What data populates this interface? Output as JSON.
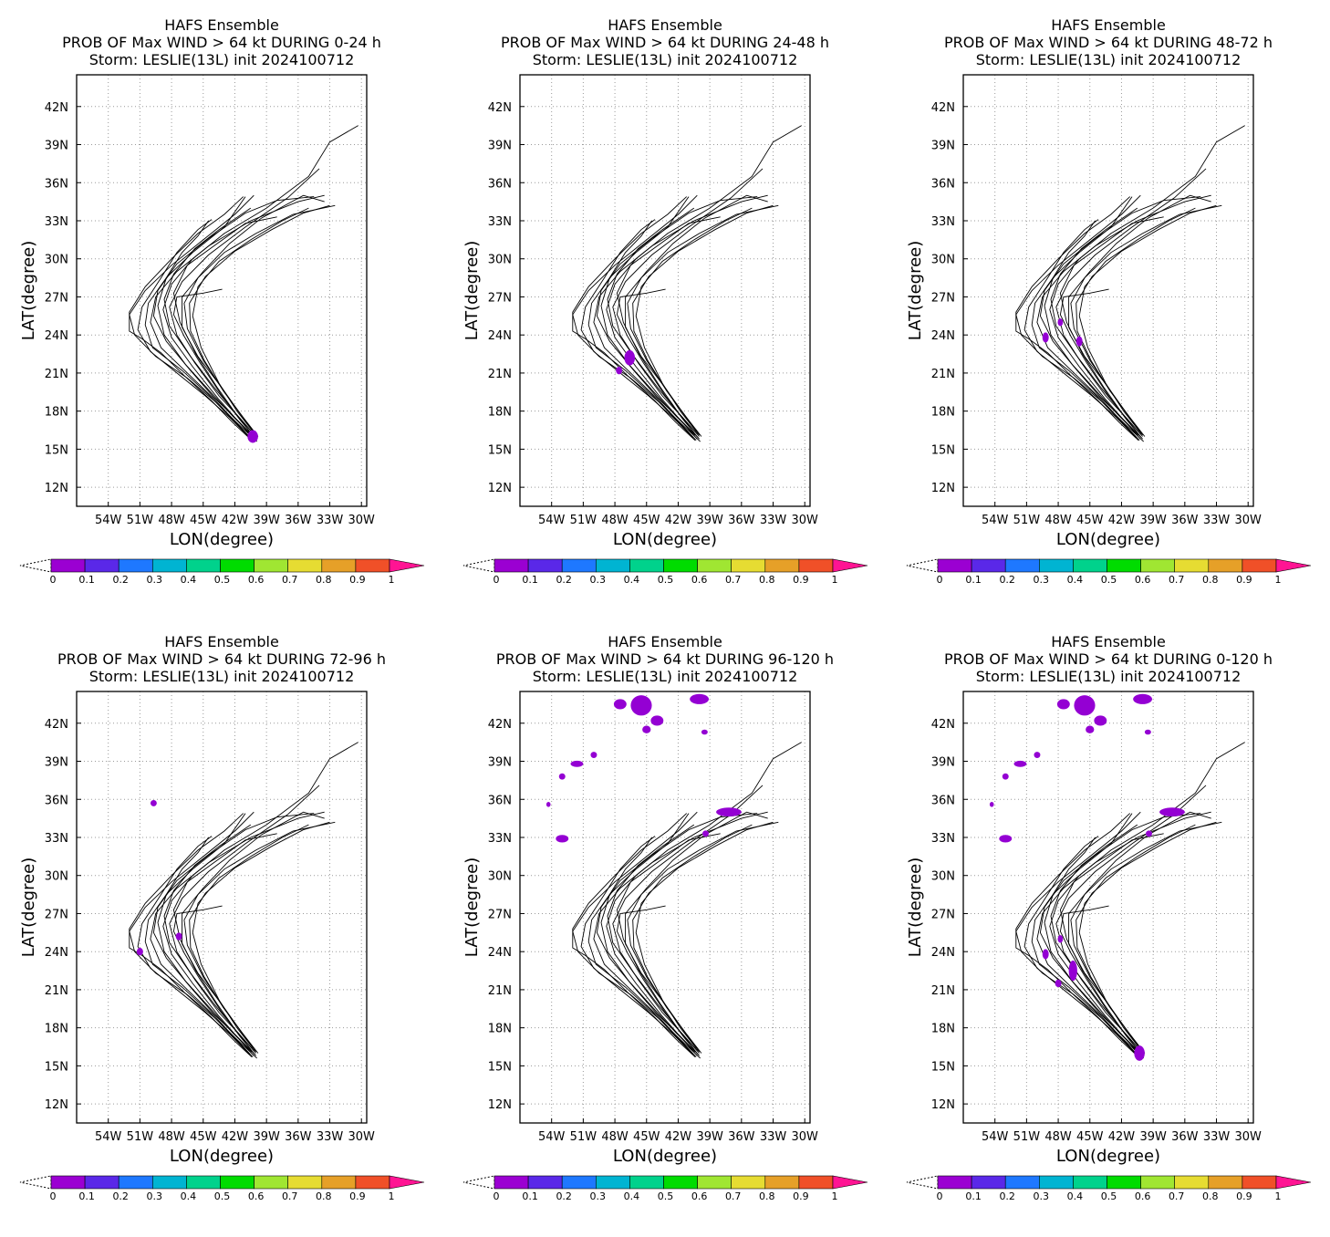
{
  "chart_data": [
    {
      "type": "map",
      "title_line1": "HAFS Ensemble",
      "title_line2": "PROB OF Max WIND > 64 kt DURING  0-24 h",
      "title_line3": "Storm: LESLIE(13L) init 2024100712",
      "xlabel": "LON(degree)",
      "ylabel": "LAT(degree)",
      "prob_areas": [
        {
          "lon": -40.3,
          "lat": 16.0,
          "rlon": 0.5,
          "rlat": 0.5
        }
      ]
    },
    {
      "type": "map",
      "title_line1": "HAFS Ensemble",
      "title_line2": "PROB OF Max WIND > 64 kt DURING 24-48 h",
      "title_line3": "Storm: LESLIE(13L) init 2024100712",
      "xlabel": "LON(degree)",
      "ylabel": "LAT(degree)",
      "prob_areas": [
        {
          "lon": -46.6,
          "lat": 22.2,
          "rlon": 0.5,
          "rlat": 0.6
        },
        {
          "lon": -47.6,
          "lat": 21.2,
          "rlon": 0.3,
          "rlat": 0.3
        }
      ]
    },
    {
      "type": "map",
      "title_line1": "HAFS Ensemble",
      "title_line2": "PROB OF Max WIND > 64 kt DURING 48-72 h",
      "title_line3": "Storm: LESLIE(13L) init 2024100712",
      "xlabel": "LON(degree)",
      "ylabel": "LAT(degree)",
      "prob_areas": [
        {
          "lon": -49.2,
          "lat": 23.8,
          "rlon": 0.3,
          "rlat": 0.4
        },
        {
          "lon": -47.8,
          "lat": 25.0,
          "rlon": 0.25,
          "rlat": 0.3
        },
        {
          "lon": -46.0,
          "lat": 23.5,
          "rlon": 0.3,
          "rlat": 0.4
        }
      ]
    },
    {
      "type": "map",
      "title_line1": "HAFS Ensemble",
      "title_line2": "PROB OF Max WIND > 64 kt DURING 72-96 h",
      "title_line3": "Storm: LESLIE(13L) init 2024100712",
      "xlabel": "LON(degree)",
      "ylabel": "LAT(degree)",
      "prob_areas": [
        {
          "lon": -49.7,
          "lat": 35.7,
          "rlon": 0.3,
          "rlat": 0.25
        },
        {
          "lon": -47.3,
          "lat": 25.2,
          "rlon": 0.3,
          "rlat": 0.3
        },
        {
          "lon": -51.0,
          "lat": 24.0,
          "rlon": 0.3,
          "rlat": 0.3
        }
      ]
    },
    {
      "type": "map",
      "title_line1": "HAFS Ensemble",
      "title_line2": "PROB OF Max WIND > 64 kt DURING 96-120 h",
      "title_line3": "Storm: LESLIE(13L) init 2024100712",
      "xlabel": "LON(degree)",
      "ylabel": "LAT(degree)",
      "prob_areas": [
        {
          "lon": -47.5,
          "lat": 43.5,
          "rlon": 0.6,
          "rlat": 0.4
        },
        {
          "lon": -45.5,
          "lat": 43.4,
          "rlon": 1.0,
          "rlat": 0.8
        },
        {
          "lon": -44.0,
          "lat": 42.2,
          "rlon": 0.6,
          "rlat": 0.4
        },
        {
          "lon": -45.0,
          "lat": 41.5,
          "rlon": 0.4,
          "rlat": 0.3
        },
        {
          "lon": -40.0,
          "lat": 43.9,
          "rlon": 0.9,
          "rlat": 0.4
        },
        {
          "lon": -39.5,
          "lat": 41.3,
          "rlon": 0.3,
          "rlat": 0.2
        },
        {
          "lon": -51.6,
          "lat": 38.8,
          "rlon": 0.6,
          "rlat": 0.25
        },
        {
          "lon": -50.0,
          "lat": 39.5,
          "rlon": 0.3,
          "rlat": 0.25
        },
        {
          "lon": -53.0,
          "lat": 37.8,
          "rlon": 0.3,
          "rlat": 0.25
        },
        {
          "lon": -54.3,
          "lat": 35.6,
          "rlon": 0.2,
          "rlat": 0.2
        },
        {
          "lon": -53.0,
          "lat": 32.9,
          "rlon": 0.6,
          "rlat": 0.3
        },
        {
          "lon": -37.2,
          "lat": 35.0,
          "rlon": 1.2,
          "rlat": 0.35
        },
        {
          "lon": -39.4,
          "lat": 33.3,
          "rlon": 0.3,
          "rlat": 0.25
        }
      ]
    },
    {
      "type": "map",
      "title_line1": "HAFS Ensemble",
      "title_line2": "PROB OF Max WIND > 64 kt DURING 0-120 h",
      "title_line3": "Storm: LESLIE(13L) init 2024100712",
      "xlabel": "LON(degree)",
      "ylabel": "LAT(degree)",
      "prob_areas": [
        {
          "lon": -47.5,
          "lat": 43.5,
          "rlon": 0.6,
          "rlat": 0.4
        },
        {
          "lon": -45.5,
          "lat": 43.4,
          "rlon": 1.0,
          "rlat": 0.8
        },
        {
          "lon": -44.0,
          "lat": 42.2,
          "rlon": 0.6,
          "rlat": 0.4
        },
        {
          "lon": -45.0,
          "lat": 41.5,
          "rlon": 0.4,
          "rlat": 0.3
        },
        {
          "lon": -40.0,
          "lat": 43.9,
          "rlon": 0.9,
          "rlat": 0.4
        },
        {
          "lon": -39.5,
          "lat": 41.3,
          "rlon": 0.3,
          "rlat": 0.2
        },
        {
          "lon": -51.6,
          "lat": 38.8,
          "rlon": 0.6,
          "rlat": 0.25
        },
        {
          "lon": -50.0,
          "lat": 39.5,
          "rlon": 0.3,
          "rlat": 0.25
        },
        {
          "lon": -53.0,
          "lat": 37.8,
          "rlon": 0.3,
          "rlat": 0.25
        },
        {
          "lon": -54.3,
          "lat": 35.6,
          "rlon": 0.2,
          "rlat": 0.2
        },
        {
          "lon": -53.0,
          "lat": 32.9,
          "rlon": 0.6,
          "rlat": 0.3
        },
        {
          "lon": -37.2,
          "lat": 35.0,
          "rlon": 1.2,
          "rlat": 0.35
        },
        {
          "lon": -39.4,
          "lat": 33.3,
          "rlon": 0.3,
          "rlat": 0.25
        },
        {
          "lon": -40.3,
          "lat": 16.0,
          "rlon": 0.5,
          "rlat": 0.6
        },
        {
          "lon": -46.6,
          "lat": 22.5,
          "rlon": 0.4,
          "rlat": 0.8
        },
        {
          "lon": -49.2,
          "lat": 23.8,
          "rlon": 0.3,
          "rlat": 0.4
        },
        {
          "lon": -47.8,
          "lat": 25.0,
          "rlon": 0.25,
          "rlat": 0.3
        },
        {
          "lon": -48.0,
          "lat": 21.5,
          "rlon": 0.3,
          "rlat": 0.3
        }
      ]
    }
  ],
  "shared": {
    "xlim": [
      -57,
      -29.5
    ],
    "ylim": [
      10.5,
      44.5
    ],
    "xticks": [
      -54,
      -51,
      -48,
      -45,
      -42,
      -39,
      -36,
      -33,
      -30
    ],
    "xtick_labels": [
      "54W",
      "51W",
      "48W",
      "45W",
      "42W",
      "39W",
      "36W",
      "33W",
      "30W"
    ],
    "yticks": [
      12,
      15,
      18,
      21,
      24,
      27,
      30,
      33,
      36,
      39,
      42
    ],
    "ytick_labels": [
      "12N",
      "15N",
      "18N",
      "21N",
      "24N",
      "27N",
      "30N",
      "33N",
      "36N",
      "39N",
      "42N"
    ],
    "grid": true,
    "prob_color": "#9400d3",
    "colorbar": {
      "colors": [
        "#9b00d2",
        "#5a28e8",
        "#1e78ff",
        "#00b4d2",
        "#00d28c",
        "#00dc00",
        "#a0e632",
        "#e6dc32",
        "#e6a028",
        "#f05028",
        "#ff1493"
      ],
      "labels": [
        "0",
        "0.1",
        "0.2",
        "0.3",
        "0.4",
        "0.5",
        "0.6",
        "0.7",
        "0.8",
        "0.9",
        "1"
      ]
    },
    "tracks": [
      [
        [
          -40.2,
          15.8
        ],
        [
          -41.8,
          17.3
        ],
        [
          -43.6,
          19.0
        ],
        [
          -46.0,
          21.5
        ],
        [
          -48.0,
          23.8
        ],
        [
          -48.8,
          26.0
        ],
        [
          -48.0,
          28.0
        ],
        [
          -46.0,
          30.0
        ],
        [
          -43.0,
          32.0
        ],
        [
          -39.0,
          34.0
        ],
        [
          -35.0,
          36.5
        ],
        [
          -33.0,
          39.2
        ],
        [
          -30.3,
          40.5
        ]
      ],
      [
        [
          -40.0,
          16.0
        ],
        [
          -41.6,
          17.5
        ],
        [
          -43.5,
          19.2
        ],
        [
          -45.8,
          21.8
        ],
        [
          -47.5,
          24.0
        ],
        [
          -48.2,
          26.2
        ],
        [
          -47.0,
          28.2
        ],
        [
          -44.5,
          30.3
        ],
        [
          -41.0,
          32.5
        ],
        [
          -37.0,
          34.8
        ],
        [
          -34.0,
          37.1
        ]
      ],
      [
        [
          -40.3,
          15.7
        ],
        [
          -42.0,
          17.2
        ],
        [
          -44.0,
          19.0
        ],
        [
          -46.5,
          21.0
        ],
        [
          -49.0,
          23.0
        ],
        [
          -50.0,
          25.0
        ],
        [
          -49.5,
          27.0
        ],
        [
          -47.5,
          29.0
        ],
        [
          -44.5,
          31.0
        ],
        [
          -40.5,
          33.0
        ],
        [
          -36.0,
          34.5
        ],
        [
          -33.5,
          35.0
        ]
      ],
      [
        [
          -39.8,
          16.0
        ],
        [
          -41.3,
          17.6
        ],
        [
          -43.0,
          19.5
        ],
        [
          -45.0,
          22.0
        ],
        [
          -46.5,
          24.5
        ],
        [
          -46.8,
          26.5
        ],
        [
          -45.5,
          28.5
        ],
        [
          -43.0,
          30.5
        ],
        [
          -40.0,
          32.0
        ],
        [
          -36.5,
          33.5
        ],
        [
          -32.5,
          34.2
        ]
      ],
      [
        [
          -40.6,
          15.9
        ],
        [
          -42.3,
          17.4
        ],
        [
          -44.5,
          19.3
        ],
        [
          -47.0,
          21.2
        ],
        [
          -49.8,
          23.0
        ],
        [
          -50.5,
          24.8
        ],
        [
          -50.2,
          26.5
        ],
        [
          -48.5,
          28.5
        ],
        [
          -46.0,
          30.5
        ],
        [
          -43.0,
          32.5
        ],
        [
          -41.0,
          34.9
        ]
      ],
      [
        [
          -40.1,
          16.2
        ],
        [
          -41.5,
          17.8
        ],
        [
          -43.2,
          19.8
        ],
        [
          -45.5,
          22.3
        ],
        [
          -47.0,
          24.6
        ],
        [
          -47.0,
          27.0
        ],
        [
          -45.0,
          29.0
        ],
        [
          -42.5,
          31.2
        ],
        [
          -39.5,
          33.2
        ],
        [
          -35.5,
          35.0
        ],
        [
          -33.5,
          34.5
        ]
      ],
      [
        [
          -40.4,
          16.1
        ],
        [
          -42.2,
          17.6
        ],
        [
          -44.3,
          19.5
        ],
        [
          -46.7,
          21.7
        ],
        [
          -48.7,
          24.0
        ],
        [
          -49.3,
          26.3
        ],
        [
          -48.5,
          28.5
        ],
        [
          -47.0,
          30.5
        ],
        [
          -45.5,
          31.8
        ],
        [
          -44.5,
          33.0
        ]
      ],
      [
        [
          -39.9,
          15.6
        ],
        [
          -41.7,
          17.0
        ],
        [
          -43.8,
          18.7
        ],
        [
          -46.5,
          20.6
        ],
        [
          -49.5,
          22.3
        ],
        [
          -51.5,
          24.0
        ],
        [
          -52.0,
          25.6
        ],
        [
          -50.5,
          27.5
        ],
        [
          -48.0,
          29.5
        ],
        [
          -45.0,
          31.5
        ],
        [
          -42.0,
          33.5
        ],
        [
          -40.2,
          35.0
        ]
      ],
      [
        [
          -40.5,
          16.3
        ],
        [
          -42.0,
          17.9
        ],
        [
          -43.7,
          19.9
        ],
        [
          -45.7,
          22.5
        ],
        [
          -47.2,
          25.0
        ],
        [
          -47.8,
          27.3
        ],
        [
          -46.5,
          29.5
        ],
        [
          -44.0,
          31.0
        ],
        [
          -41.0,
          32.8
        ],
        [
          -38.0,
          33.3
        ]
      ],
      [
        [
          -40.2,
          16.2
        ],
        [
          -41.9,
          17.8
        ],
        [
          -43.9,
          19.8
        ],
        [
          -46.2,
          22.3
        ],
        [
          -48.2,
          24.7
        ],
        [
          -48.7,
          26.8
        ],
        [
          -47.8,
          28.8
        ],
        [
          -45.8,
          30.8
        ],
        [
          -43.5,
          32.3
        ],
        [
          -40.5,
          34.0
        ]
      ],
      [
        [
          -40.0,
          15.8
        ],
        [
          -41.5,
          17.3
        ],
        [
          -43.3,
          19.3
        ],
        [
          -45.3,
          21.8
        ],
        [
          -46.8,
          23.9
        ],
        [
          -47.8,
          25.6
        ],
        [
          -47.5,
          27.0
        ],
        [
          -45.0,
          27.3
        ],
        [
          -43.2,
          27.6
        ]
      ],
      [
        [
          -40.7,
          16.0
        ],
        [
          -42.5,
          17.5
        ],
        [
          -44.8,
          19.2
        ],
        [
          -47.5,
          21.0
        ],
        [
          -50.0,
          22.7
        ],
        [
          -51.2,
          24.4
        ],
        [
          -50.8,
          26.2
        ],
        [
          -49.0,
          28.5
        ],
        [
          -47.5,
          30.5
        ],
        [
          -45.5,
          32.3
        ],
        [
          -44.2,
          33.1
        ]
      ],
      [
        [
          -40.3,
          16.4
        ],
        [
          -41.8,
          18.0
        ],
        [
          -43.5,
          20.2
        ],
        [
          -45.2,
          23.0
        ],
        [
          -46.0,
          25.5
        ],
        [
          -45.5,
          27.8
        ],
        [
          -43.5,
          29.8
        ],
        [
          -40.5,
          31.5
        ],
        [
          -37.5,
          33.0
        ],
        [
          -35.0,
          34.0
        ]
      ],
      [
        [
          -40.1,
          15.9
        ],
        [
          -41.9,
          17.4
        ],
        [
          -44.0,
          19.1
        ],
        [
          -46.3,
          21.3
        ],
        [
          -48.5,
          23.5
        ],
        [
          -49.7,
          25.5
        ],
        [
          -49.3,
          27.5
        ],
        [
          -47.5,
          29.6
        ],
        [
          -44.5,
          31.6
        ],
        [
          -41.0,
          33.6
        ],
        [
          -38.0,
          34.6
        ],
        [
          -34.5,
          34.9
        ]
      ],
      [
        [
          -40.4,
          15.7
        ],
        [
          -42.2,
          17.1
        ],
        [
          -44.2,
          18.8
        ],
        [
          -46.8,
          20.8
        ],
        [
          -49.0,
          22.6
        ],
        [
          -50.8,
          23.7
        ],
        [
          -52.0,
          24.3
        ],
        [
          -52.0,
          25.8
        ],
        [
          -50.5,
          27.8
        ],
        [
          -48.0,
          30.0
        ],
        [
          -45.5,
          32.0
        ],
        [
          -43.0,
          33.5
        ],
        [
          -41.2,
          34.9
        ]
      ],
      [
        [
          -40.0,
          16.1
        ],
        [
          -41.4,
          17.7
        ],
        [
          -43.1,
          19.6
        ],
        [
          -44.9,
          22.0
        ],
        [
          -46.2,
          24.3
        ],
        [
          -46.3,
          26.5
        ],
        [
          -44.8,
          28.6
        ],
        [
          -42.0,
          30.6
        ],
        [
          -38.5,
          32.3
        ],
        [
          -35.5,
          33.6
        ],
        [
          -33.0,
          34.2
        ]
      ]
    ]
  }
}
